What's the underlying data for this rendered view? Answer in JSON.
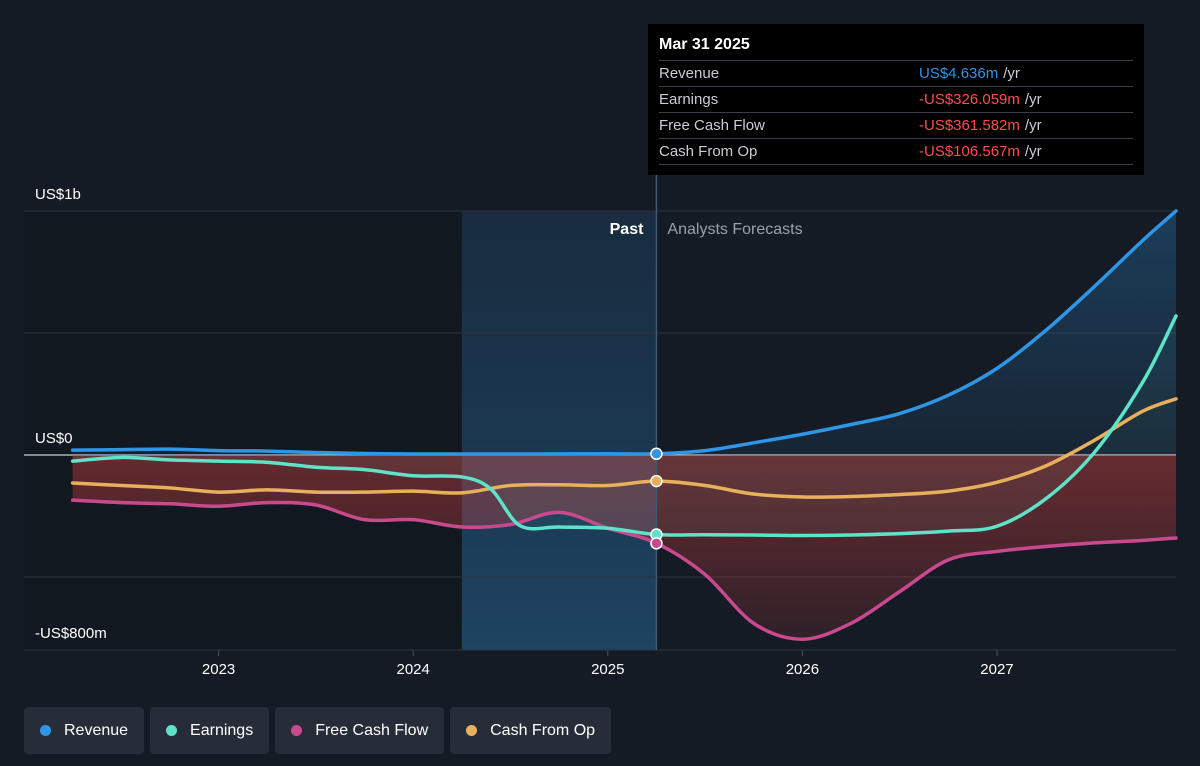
{
  "tooltip": {
    "date": "Mar 31 2025",
    "rows": [
      {
        "label": "Revenue",
        "value": "US$4.636m",
        "unit": "/yr",
        "color": "#2f96e6"
      },
      {
        "label": "Earnings",
        "value": "-US$326.059m",
        "unit": "/yr",
        "color": "#ff4d4d"
      },
      {
        "label": "Free Cash Flow",
        "value": "-US$361.582m",
        "unit": "/yr",
        "color": "#ff4d4d"
      },
      {
        "label": "Cash From Op",
        "value": "-US$106.567m",
        "unit": "/yr",
        "color": "#ff4d4d"
      }
    ]
  },
  "legend": [
    {
      "label": "Revenue",
      "color": "#2f96e6"
    },
    {
      "label": "Earnings",
      "color": "#5ee3c9"
    },
    {
      "label": "Free Cash Flow",
      "color": "#c9498f"
    },
    {
      "label": "Cash From Op",
      "color": "#e9b05c"
    }
  ],
  "chart_data": {
    "type": "line",
    "y_tick_labels": [
      "US$1b",
      "US$0",
      "-US$800m"
    ],
    "ylim": [
      -800,
      1000
    ],
    "x_tick_labels": [
      "2023",
      "2024",
      "2025",
      "2026",
      "2027"
    ],
    "x_ticks": [
      2023,
      2024,
      2025,
      2026,
      2027
    ],
    "xlim": [
      2022.0,
      2027.92
    ],
    "past_label": "Past",
    "forecast_label": "Analysts Forecasts",
    "highlight_range": [
      2024.25,
      2025.25
    ],
    "divider_x": 2025.25,
    "grid": true,
    "series": [
      {
        "name": "Revenue",
        "color": "#2f96e6",
        "x": [
          2022.25,
          2022.5,
          2022.75,
          2023.0,
          2023.25,
          2023.5,
          2023.75,
          2024.0,
          2024.25,
          2024.5,
          2024.75,
          2025.0,
          2025.25,
          2025.5,
          2025.75,
          2026.0,
          2026.25,
          2026.5,
          2026.75,
          2027.0,
          2027.25,
          2027.5,
          2027.75,
          2027.92
        ],
        "y": [
          20,
          22,
          24,
          18,
          16,
          10,
          6,
          4,
          4,
          4,
          4.5,
          5,
          5,
          18,
          50,
          85,
          125,
          170,
          245,
          355,
          510,
          690,
          880,
          1000
        ]
      },
      {
        "name": "Earnings",
        "color": "#5ee3c9",
        "x": [
          2022.25,
          2022.5,
          2022.75,
          2023.0,
          2023.25,
          2023.5,
          2023.75,
          2024.0,
          2024.25,
          2024.4,
          2024.55,
          2024.75,
          2025.0,
          2025.25,
          2025.5,
          2025.75,
          2026.0,
          2026.25,
          2026.5,
          2026.75,
          2027.0,
          2027.25,
          2027.5,
          2027.75,
          2027.92
        ],
        "y": [
          -25,
          -10,
          -20,
          -25,
          -30,
          -50,
          -60,
          -85,
          -90,
          -140,
          -290,
          -295,
          -300,
          -326,
          -327,
          -328,
          -330,
          -328,
          -322,
          -312,
          -292,
          -180,
          10,
          300,
          570
        ]
      },
      {
        "name": "Free Cash Flow",
        "color": "#c9498f",
        "x": [
          2022.25,
          2022.5,
          2022.75,
          2023.0,
          2023.25,
          2023.5,
          2023.75,
          2024.0,
          2024.25,
          2024.5,
          2024.75,
          2025.0,
          2025.25,
          2025.5,
          2025.75,
          2026.0,
          2026.25,
          2026.5,
          2026.75,
          2027.0,
          2027.25,
          2027.5,
          2027.75,
          2027.92
        ],
        "y": [
          -185,
          -195,
          -200,
          -210,
          -195,
          -205,
          -265,
          -265,
          -295,
          -285,
          -235,
          -300,
          -362,
          -490,
          -690,
          -755,
          -690,
          -560,
          -430,
          -395,
          -375,
          -360,
          -350,
          -340
        ]
      },
      {
        "name": "Cash From Op",
        "color": "#e9b05c",
        "x": [
          2022.25,
          2022.5,
          2022.75,
          2023.0,
          2023.25,
          2023.5,
          2023.75,
          2024.0,
          2024.25,
          2024.5,
          2024.75,
          2025.0,
          2025.25,
          2025.5,
          2025.75,
          2026.0,
          2026.25,
          2026.5,
          2026.75,
          2027.0,
          2027.25,
          2027.5,
          2027.75,
          2027.92
        ],
        "y": [
          -115,
          -125,
          -135,
          -152,
          -143,
          -152,
          -152,
          -148,
          -155,
          -125,
          -122,
          -125,
          -107,
          -125,
          -160,
          -172,
          -170,
          -162,
          -148,
          -112,
          -45,
          60,
          180,
          230
        ]
      }
    ],
    "markers": [
      {
        "series": "Revenue",
        "x": 2025.25,
        "y": 5
      },
      {
        "series": "Cash From Op",
        "x": 2025.25,
        "y": -107
      },
      {
        "series": "Earnings",
        "x": 2025.25,
        "y": -326
      },
      {
        "series": "Free Cash Flow",
        "x": 2025.25,
        "y": -362
      }
    ]
  }
}
